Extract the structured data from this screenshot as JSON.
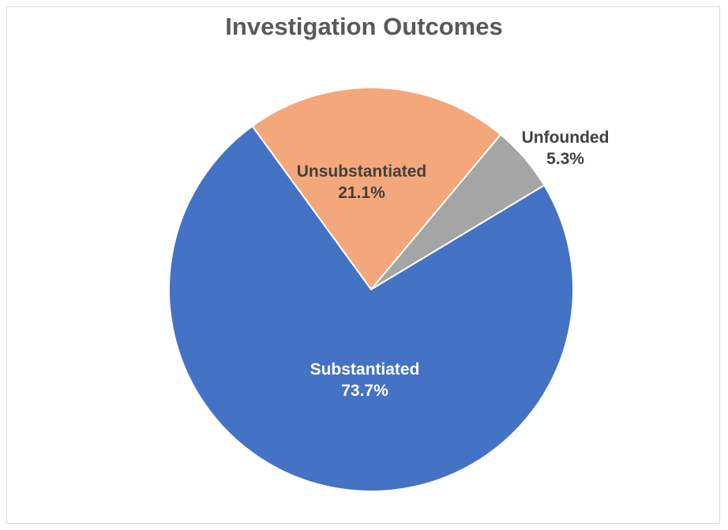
{
  "chart_data": {
    "type": "pie",
    "title": "Investigation Outcomes",
    "slices": [
      {
        "label": "Unsubstantiated",
        "value": 21.1,
        "display": "21.1%",
        "color": "#F4A77A",
        "label_color": "#404040"
      },
      {
        "label": "Unfounded",
        "value": 5.3,
        "display": "5.3%",
        "color": "#A5A5A5",
        "label_color": "#404040"
      },
      {
        "label": "Substantiated",
        "value": 73.7,
        "display": "73.7%",
        "color": "#4472C4",
        "label_color": "#ffffff"
      }
    ],
    "start_angle_deg": -36,
    "direction": "clockwise",
    "legend": "none",
    "data_labels": "category and percentage"
  }
}
